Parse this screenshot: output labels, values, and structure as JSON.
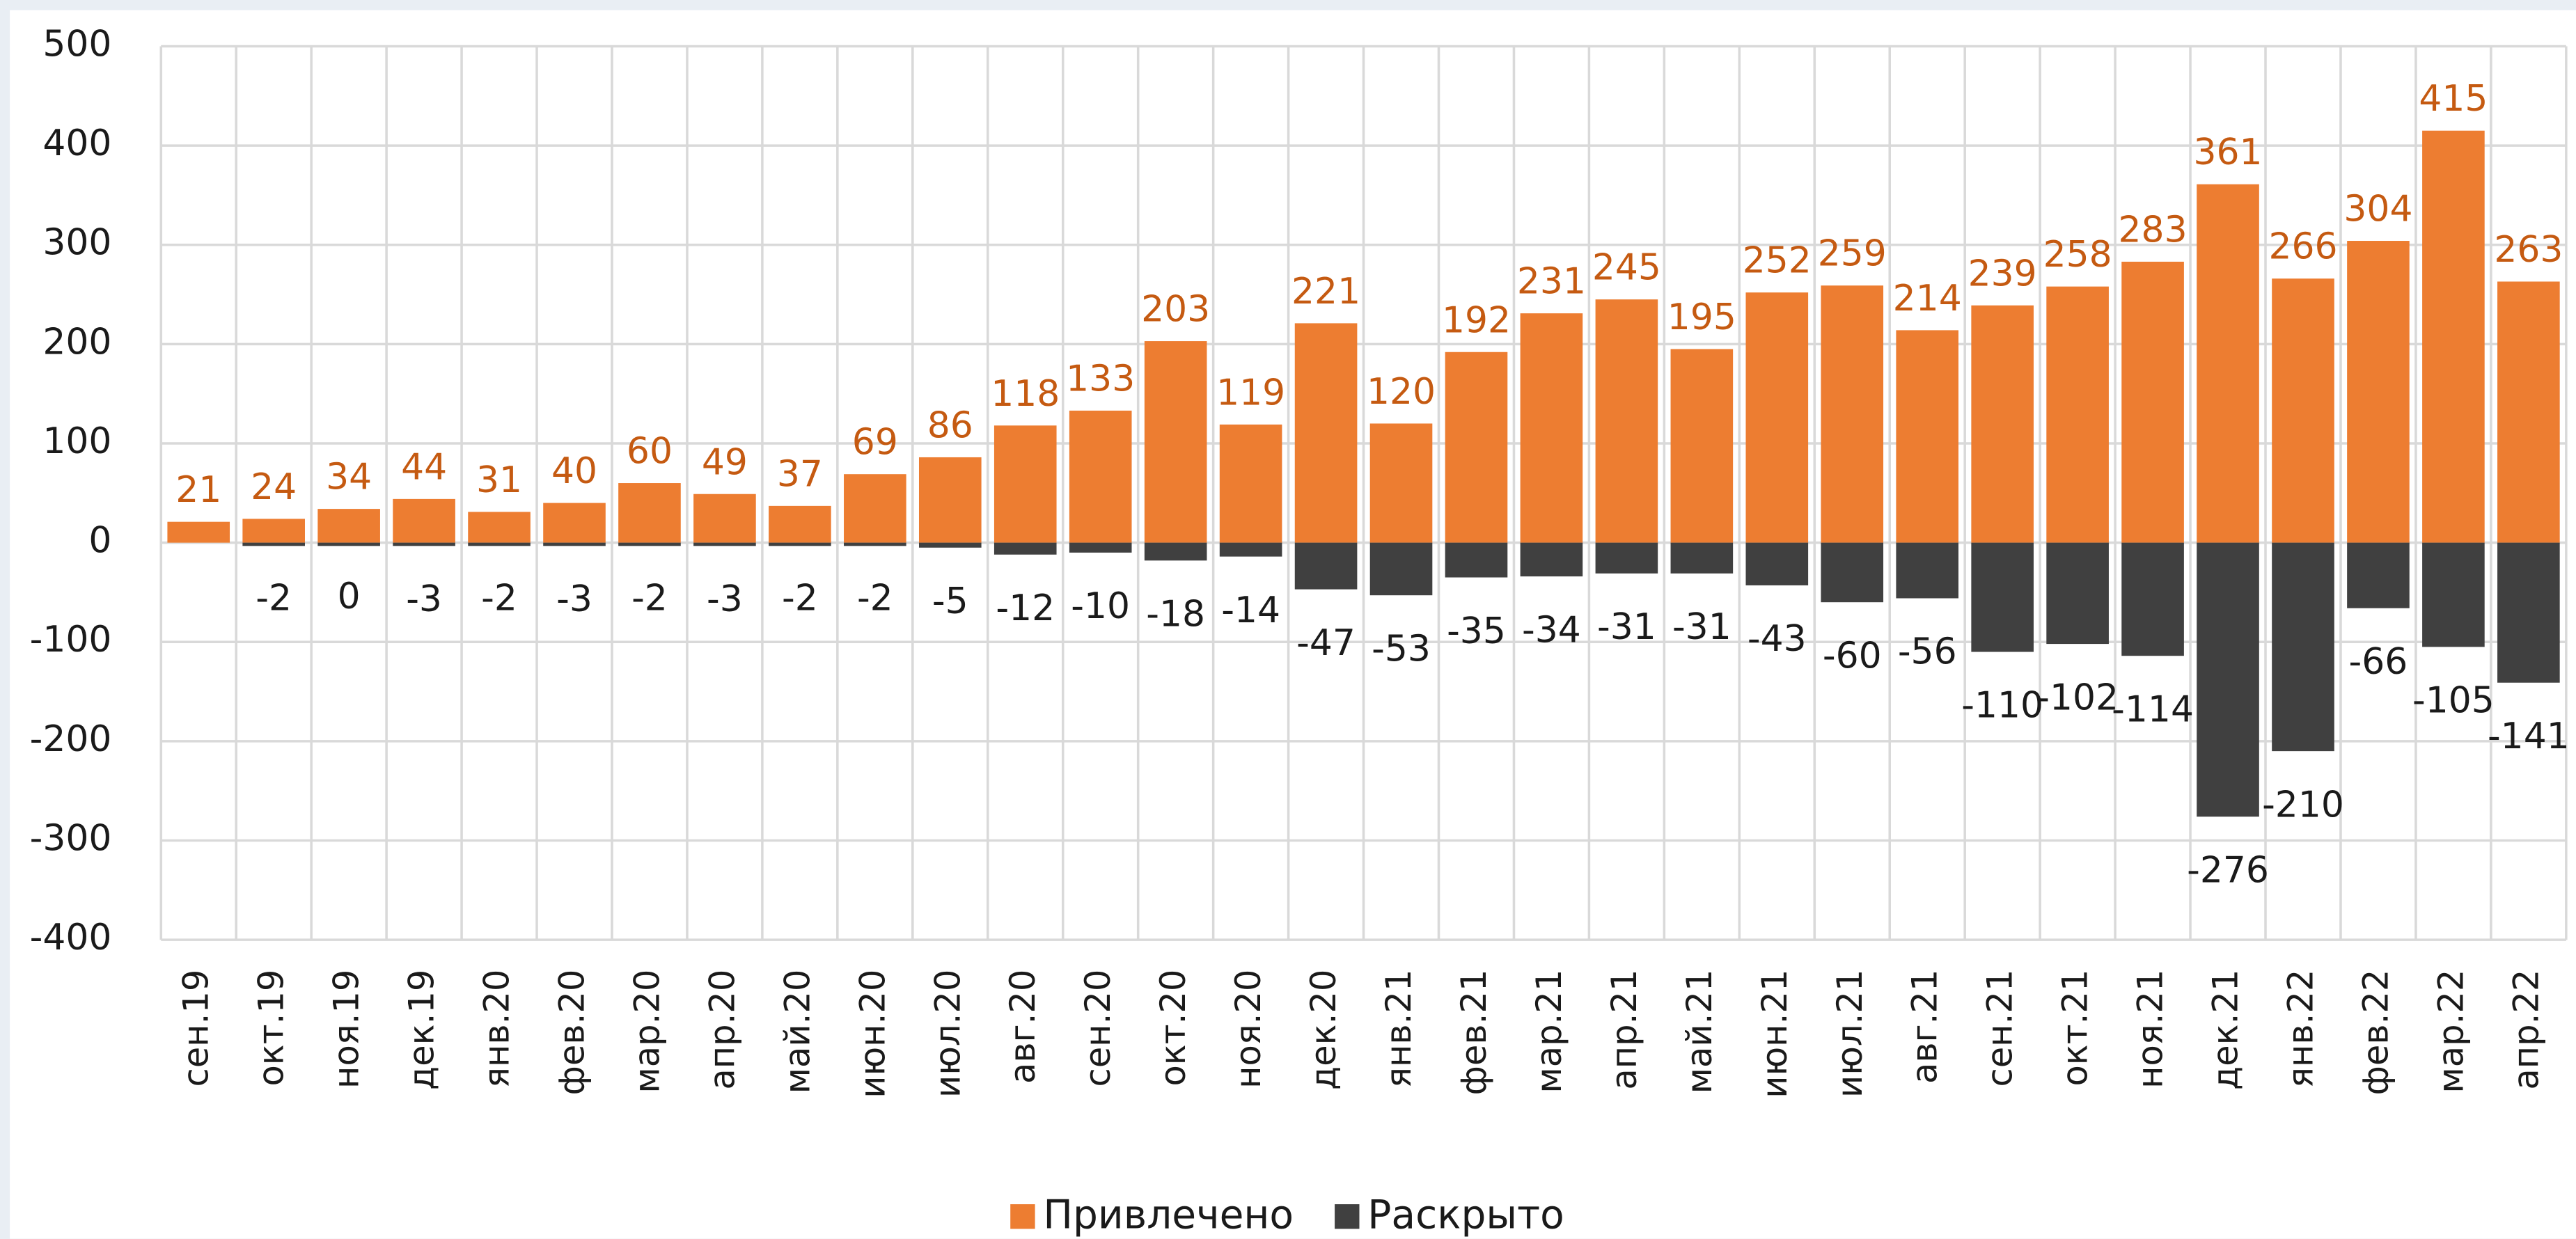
{
  "chart_data": {
    "type": "bar",
    "categories": [
      "сен.19",
      "окт.19",
      "ноя.19",
      "дек.19",
      "янв.20",
      "фев.20",
      "мар.20",
      "апр.20",
      "май.20",
      "июн.20",
      "июл.20",
      "авг.20",
      "сен.20",
      "окт.20",
      "ноя.20",
      "дек.20",
      "янв.21",
      "фев.21",
      "мар.21",
      "апр.21",
      "май.21",
      "июн.21",
      "июл.21",
      "авг.21",
      "сен.21",
      "окт.21",
      "ноя.21",
      "дек.21",
      "янв.22",
      "фев.22",
      "мар.22",
      "апр.22"
    ],
    "series": [
      {
        "name": "Привлечено",
        "color": "#ed7d31",
        "values": [
          21,
          24,
          34,
          44,
          31,
          40,
          60,
          49,
          37,
          69,
          86,
          118,
          133,
          203,
          119,
          221,
          120,
          192,
          231,
          245,
          195,
          252,
          259,
          214,
          239,
          258,
          283,
          361,
          266,
          304,
          415,
          263
        ]
      },
      {
        "name": "Раскрыто",
        "color": "#404040",
        "values": [
          null,
          -2,
          0,
          -3,
          -2,
          -3,
          -2,
          -3,
          -2,
          -2,
          -5,
          -12,
          -10,
          -18,
          -14,
          -47,
          -53,
          -35,
          -34,
          -31,
          -31,
          -43,
          -60,
          -56,
          -110,
          -102,
          -114,
          -276,
          -210,
          -66,
          -105,
          -141
        ]
      }
    ],
    "ylim": [
      -400,
      500
    ],
    "yticks": [
      -400,
      -300,
      -200,
      -100,
      0,
      100,
      200,
      300,
      400,
      500
    ],
    "grid": true,
    "legend": "bottom"
  }
}
